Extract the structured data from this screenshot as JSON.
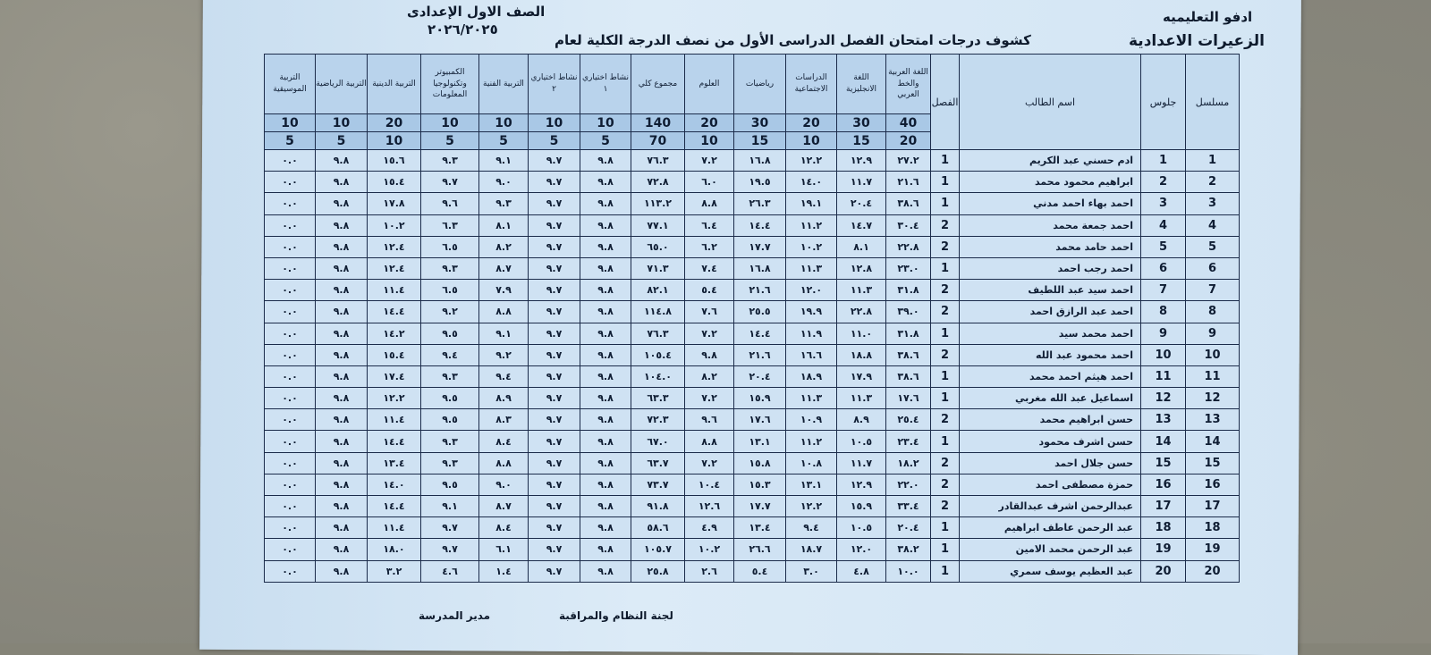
{
  "header": {
    "directorate": "ادفو التعليميه",
    "school": "الزعيرات الاعدادية",
    "title": "كشوف درجات امتحان الفصل الدراسى الأول من نصف الدرجة الكلية لعام",
    "grade": "الصف الاول الإعدادى",
    "year": "٢٠٢٦/٢٠٢٥"
  },
  "table": {
    "fixed_headers": {
      "serial": "مسلسل",
      "seat": "جلوس",
      "name": "اسم الطالب",
      "class": "الفصل"
    },
    "subjects": [
      {
        "label": "اللغة العربية والخط العربي",
        "max": "40",
        "half": "20"
      },
      {
        "label": "اللغة الانجليزية",
        "max": "30",
        "half": "15"
      },
      {
        "label": "الدراسات الاجتماعية",
        "max": "20",
        "half": "10"
      },
      {
        "label": "رياضيات",
        "max": "30",
        "half": "15"
      },
      {
        "label": "العلوم",
        "max": "20",
        "half": "10"
      },
      {
        "label": "مجموع كلي",
        "max": "140",
        "half": "70"
      },
      {
        "label": "نشاط اختياري ١",
        "max": "10",
        "half": "5"
      },
      {
        "label": "نشاط اختياري ٢",
        "max": "10",
        "half": "5"
      },
      {
        "label": "التربية الفنية",
        "max": "10",
        "half": "5"
      },
      {
        "label": "الكمبيوتر وتكنولوجيا المعلومات",
        "max": "10",
        "half": "5"
      },
      {
        "label": "التربية الدينية",
        "max": "20",
        "half": "10"
      },
      {
        "label": "التربية الرياضية",
        "max": "10",
        "half": "5"
      },
      {
        "label": "التربية الموسيقية",
        "max": "10",
        "half": "5"
      }
    ],
    "rows": [
      {
        "serial": "1",
        "seat": "1",
        "name": "ادم حسني عبد الكريم",
        "class": "1",
        "scores": [
          "٢٧.٢",
          "١٢.٩",
          "١٢.٢",
          "١٦.٨",
          "٧.٢",
          "٧٦.٣",
          "٩.٨",
          "٩.٧",
          "٩.١",
          "٩.٣",
          "١٥.٦",
          "٩.٨",
          "٠.٠"
        ]
      },
      {
        "serial": "2",
        "seat": "2",
        "name": "ابراهيم محمود محمد",
        "class": "1",
        "scores": [
          "٢١.٦",
          "١١.٧",
          "١٤.٠",
          "١٩.٥",
          "٦.٠",
          "٧٢.٨",
          "٩.٨",
          "٩.٧",
          "٩.٠",
          "٩.٧",
          "١٥.٤",
          "٩.٨",
          "٠.٠"
        ]
      },
      {
        "serial": "3",
        "seat": "3",
        "name": "احمد بهاء احمد مدني",
        "class": "1",
        "scores": [
          "٣٨.٦",
          "٢٠.٤",
          "١٩.١",
          "٢٦.٣",
          "٨.٨",
          "١١٣.٢",
          "٩.٨",
          "٩.٧",
          "٩.٣",
          "٩.٦",
          "١٧.٨",
          "٩.٨",
          "٠.٠"
        ]
      },
      {
        "serial": "4",
        "seat": "4",
        "name": "احمد جمعة محمد",
        "class": "2",
        "scores": [
          "٣٠.٤",
          "١٤.٧",
          "١١.٢",
          "١٤.٤",
          "٦.٤",
          "٧٧.١",
          "٩.٨",
          "٩.٧",
          "٨.١",
          "٦.٣",
          "١٠.٢",
          "٩.٨",
          "٠.٠"
        ]
      },
      {
        "serial": "5",
        "seat": "5",
        "name": "احمد حامد محمد",
        "class": "2",
        "scores": [
          "٢٢.٨",
          "٨.١",
          "١٠.٢",
          "١٧.٧",
          "٦.٢",
          "٦٥.٠",
          "٩.٨",
          "٩.٧",
          "٨.٢",
          "٦.٥",
          "١٢.٤",
          "٩.٨",
          "٠.٠"
        ]
      },
      {
        "serial": "6",
        "seat": "6",
        "name": "احمد رجب احمد",
        "class": "1",
        "scores": [
          "٢٣.٠",
          "١٢.٨",
          "١١.٣",
          "١٦.٨",
          "٧.٤",
          "٧١.٣",
          "٩.٨",
          "٩.٧",
          "٨.٧",
          "٩.٣",
          "١٢.٤",
          "٩.٨",
          "٠.٠"
        ]
      },
      {
        "serial": "7",
        "seat": "7",
        "name": "احمد سيد عبد اللطيف",
        "class": "2",
        "scores": [
          "٣١.٨",
          "١١.٣",
          "١٢.٠",
          "٢١.٦",
          "٥.٤",
          "٨٢.١",
          "٩.٨",
          "٩.٧",
          "٧.٩",
          "٦.٥",
          "١١.٤",
          "٩.٨",
          "٠.٠"
        ]
      },
      {
        "serial": "8",
        "seat": "8",
        "name": "احمد عبد الرازق احمد",
        "class": "2",
        "scores": [
          "٣٩.٠",
          "٢٢.٨",
          "١٩.٩",
          "٢٥.٥",
          "٧.٦",
          "١١٤.٨",
          "٩.٨",
          "٩.٧",
          "٨.٨",
          "٩.٢",
          "١٤.٤",
          "٩.٨",
          "٠.٠"
        ]
      },
      {
        "serial": "9",
        "seat": "9",
        "name": "احمد محمد سيد",
        "class": "1",
        "scores": [
          "٣١.٨",
          "١١.٠",
          "١١.٩",
          "١٤.٤",
          "٧.٢",
          "٧٦.٣",
          "٩.٨",
          "٩.٧",
          "٩.١",
          "٩.٥",
          "١٤.٢",
          "٩.٨",
          "٠.٠"
        ]
      },
      {
        "serial": "10",
        "seat": "10",
        "name": "احمد محمود عبد الله",
        "class": "2",
        "scores": [
          "٣٨.٦",
          "١٨.٨",
          "١٦.٦",
          "٢١.٦",
          "٩.٨",
          "١٠٥.٤",
          "٩.٨",
          "٩.٧",
          "٩.٢",
          "٩.٤",
          "١٥.٤",
          "٩.٨",
          "٠.٠"
        ]
      },
      {
        "serial": "11",
        "seat": "11",
        "name": "احمد هيثم احمد محمد",
        "class": "1",
        "scores": [
          "٣٨.٦",
          "١٧.٩",
          "١٨.٩",
          "٢٠.٤",
          "٨.٢",
          "١٠٤.٠",
          "٩.٨",
          "٩.٧",
          "٩.٤",
          "٩.٣",
          "١٧.٤",
          "٩.٨",
          "٠.٠"
        ]
      },
      {
        "serial": "12",
        "seat": "12",
        "name": "اسماعيل عبد الله مغربي",
        "class": "1",
        "scores": [
          "١٧.٦",
          "١١.٣",
          "١١.٣",
          "١٥.٩",
          "٧.٢",
          "٦٣.٣",
          "٩.٨",
          "٩.٧",
          "٨.٩",
          "٩.٥",
          "١٢.٢",
          "٩.٨",
          "٠.٠"
        ]
      },
      {
        "serial": "13",
        "seat": "13",
        "name": "حسن ابراهيم محمد",
        "class": "2",
        "scores": [
          "٢٥.٤",
          "٨.٩",
          "١٠.٩",
          "١٧.٦",
          "٩.٦",
          "٧٢.٣",
          "٩.٨",
          "٩.٧",
          "٨.٣",
          "٩.٥",
          "١١.٤",
          "٩.٨",
          "٠.٠"
        ]
      },
      {
        "serial": "14",
        "seat": "14",
        "name": "حسن اشرف محمود",
        "class": "1",
        "scores": [
          "٢٣.٤",
          "١٠.٥",
          "١١.٢",
          "١٣.١",
          "٨.٨",
          "٦٧.٠",
          "٩.٨",
          "٩.٧",
          "٨.٤",
          "٩.٣",
          "١٤.٤",
          "٩.٨",
          "٠.٠"
        ]
      },
      {
        "serial": "15",
        "seat": "15",
        "name": "حسن جلال احمد",
        "class": "2",
        "scores": [
          "١٨.٢",
          "١١.٧",
          "١٠.٨",
          "١٥.٨",
          "٧.٢",
          "٦٣.٧",
          "٩.٨",
          "٩.٧",
          "٨.٨",
          "٩.٣",
          "١٣.٤",
          "٩.٨",
          "٠.٠"
        ]
      },
      {
        "serial": "16",
        "seat": "16",
        "name": "حمزة مصطفى احمد",
        "class": "2",
        "scores": [
          "٢٢.٠",
          "١٢.٩",
          "١٣.١",
          "١٥.٣",
          "١٠.٤",
          "٧٣.٧",
          "٩.٨",
          "٩.٧",
          "٩.٠",
          "٩.٥",
          "١٤.٠",
          "٩.٨",
          "٠.٠"
        ]
      },
      {
        "serial": "17",
        "seat": "17",
        "name": "عبدالرحمن اشرف عبدالقادر",
        "class": "2",
        "scores": [
          "٣٣.٤",
          "١٥.٩",
          "١٢.٢",
          "١٧.٧",
          "١٢.٦",
          "٩١.٨",
          "٩.٨",
          "٩.٧",
          "٨.٧",
          "٩.١",
          "١٤.٤",
          "٩.٨",
          "٠.٠"
        ]
      },
      {
        "serial": "18",
        "seat": "18",
        "name": "عبد الرحمن عاطف ابراهيم",
        "class": "1",
        "scores": [
          "٢٠.٤",
          "١٠.٥",
          "٩.٤",
          "١٣.٤",
          "٤.٩",
          "٥٨.٦",
          "٩.٨",
          "٩.٧",
          "٨.٤",
          "٩.٧",
          "١١.٤",
          "٩.٨",
          "٠.٠"
        ]
      },
      {
        "serial": "19",
        "seat": "19",
        "name": "عبد الرحمن محمد الامين",
        "class": "1",
        "scores": [
          "٣٨.٢",
          "١٢.٠",
          "١٨.٧",
          "٢٦.٦",
          "١٠.٢",
          "١٠٥.٧",
          "٩.٨",
          "٩.٧",
          "٦.١",
          "٩.٧",
          "١٨.٠",
          "٩.٨",
          "٠.٠"
        ]
      },
      {
        "serial": "20",
        "seat": "20",
        "name": "عبد العظيم يوسف سمري",
        "class": "1",
        "scores": [
          "١٠.٠",
          "٤.٨",
          "٣.٠",
          "٥.٤",
          "٢.٦",
          "٢٥.٨",
          "٩.٨",
          "٩.٧",
          "١.٤",
          "٤.٦",
          "٣.٢",
          "٩.٨",
          "٠.٠"
        ]
      }
    ]
  },
  "footer": {
    "committee": "لجنة النظام والمراقبة",
    "principal": "مدير المدرسة"
  }
}
